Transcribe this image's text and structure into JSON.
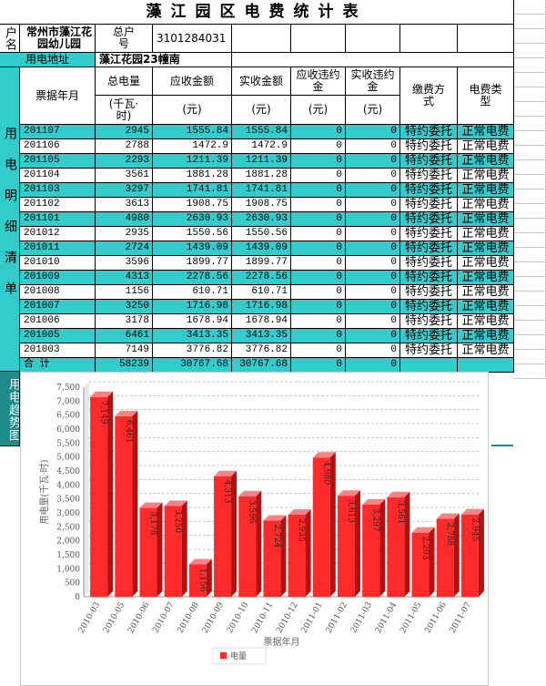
{
  "title": "藻江园区电费统计表",
  "info": {
    "name_label": "户名",
    "name": "常州市藻江花园幼儿园",
    "account_label": "总户号",
    "account": "3101284031",
    "address_label": "用电地址",
    "address": "藻江花园23幢南"
  },
  "side_labels": {
    "detail": "用电明细清单",
    "trend": "用电趋势图"
  },
  "table": {
    "header": [
      "票据年月",
      "总电量",
      "应收金额",
      "实收金额",
      "应收违约金",
      "实收违约金",
      "缴费方式",
      "电费类型"
    ],
    "units": [
      "(千瓦·时)",
      "(元)",
      "(元)",
      "(元)",
      "(元)"
    ],
    "rows": [
      [
        "201107",
        2945,
        1555.84,
        1555.84,
        0,
        0,
        "特约委托",
        "正常电费"
      ],
      [
        "201106",
        2788,
        1472.9,
        1472.9,
        0,
        0,
        "特约委托",
        "正常电费"
      ],
      [
        "201105",
        2293,
        1211.39,
        1211.39,
        0,
        0,
        "特约委托",
        "正常电费"
      ],
      [
        "201104",
        3561,
        1881.28,
        1881.28,
        0,
        0,
        "特约委托",
        "正常电费"
      ],
      [
        "201103",
        3297,
        1741.81,
        1741.81,
        0,
        0,
        "特约委托",
        "正常电费"
      ],
      [
        "201102",
        3613,
        1908.75,
        1908.75,
        0,
        0,
        "特约委托",
        "正常电费"
      ],
      [
        "201101",
        4980,
        2630.93,
        2630.93,
        0,
        0,
        "特约委托",
        "正常电费"
      ],
      [
        "201012",
        2935,
        1550.56,
        1550.56,
        0,
        0,
        "特约委托",
        "正常电费"
      ],
      [
        "201011",
        2724,
        1439.09,
        1439.09,
        0,
        0,
        "特约委托",
        "正常电费"
      ],
      [
        "201010",
        3596,
        1899.77,
        1899.77,
        0,
        0,
        "特约委托",
        "正常电费"
      ],
      [
        "201009",
        4313,
        2278.56,
        2278.56,
        0,
        0,
        "特约委托",
        "正常电费"
      ],
      [
        "201008",
        1156,
        610.71,
        610.71,
        0,
        0,
        "特约委托",
        "正常电费"
      ],
      [
        "201007",
        3250,
        1716.98,
        1716.98,
        0,
        0,
        "特约委托",
        "正常电费"
      ],
      [
        "201006",
        3178,
        1678.94,
        1678.94,
        0,
        0,
        "特约委托",
        "正常电费"
      ],
      [
        "201005",
        6461,
        3413.35,
        3413.35,
        0,
        0,
        "特约委托",
        "正常电费"
      ],
      [
        "201003",
        7149,
        3776.82,
        3776.82,
        0,
        0,
        "特约委托",
        "正常电费"
      ]
    ],
    "total": [
      "合 计",
      58239,
      30767.68,
      30767.68,
      0,
      0
    ]
  },
  "chart_data": {
    "type": "bar",
    "y_label": "用电量(千瓦·时)",
    "x_label": "票据年月",
    "categories": [
      "2010-03",
      "2010-05",
      "2010-06",
      "2010-07",
      "2010-08",
      "2010-09",
      "2010-10",
      "2010-11",
      "2010-12",
      "2011-01",
      "2011-02",
      "2011-03",
      "2011-04",
      "2011-05",
      "2011-06",
      "2011-07"
    ],
    "series": [
      {
        "name": "电量",
        "color": "#ff2a2a",
        "values": [
          7149,
          6461,
          3178,
          3250,
          1156,
          4313,
          3596,
          2724,
          2935,
          4980,
          3613,
          3297,
          3561,
          2293,
          2788,
          2945
        ],
        "value_labels": [
          "7,149",
          "6,461",
          "3,178",
          "3,250",
          "1,156",
          "4,313",
          "3,596",
          "2,724",
          "2,935",
          "4,980",
          "3,613",
          "3,297",
          "3,561",
          "2,293",
          "2,788",
          "2,945"
        ]
      }
    ],
    "ylim": [
      0,
      7500
    ],
    "yticks": [
      0,
      500,
      {
        "value": 1000,
        "label": "1,000"
      },
      {
        "value": 1500,
        "label": "1,500"
      },
      {
        "value": 2000,
        "label": "2,000"
      },
      {
        "value": 2500,
        "label": "2,500"
      },
      {
        "value": 3000,
        "label": "3,000"
      },
      {
        "value": 3500,
        "label": "3,500"
      },
      {
        "value": 4000,
        "label": "4,000"
      },
      {
        "value": 4500,
        "label": "4,500"
      },
      {
        "value": 5000,
        "label": "5,000"
      },
      {
        "value": 5500,
        "label": "5,500"
      },
      {
        "value": 6000,
        "label": "6,000"
      },
      {
        "value": 6500,
        "label": "6,500"
      },
      {
        "value": 7000,
        "label": "7,000"
      },
      {
        "value": 7500,
        "label": "7,500"
      }
    ],
    "grid": true,
    "legend": "bottom"
  }
}
